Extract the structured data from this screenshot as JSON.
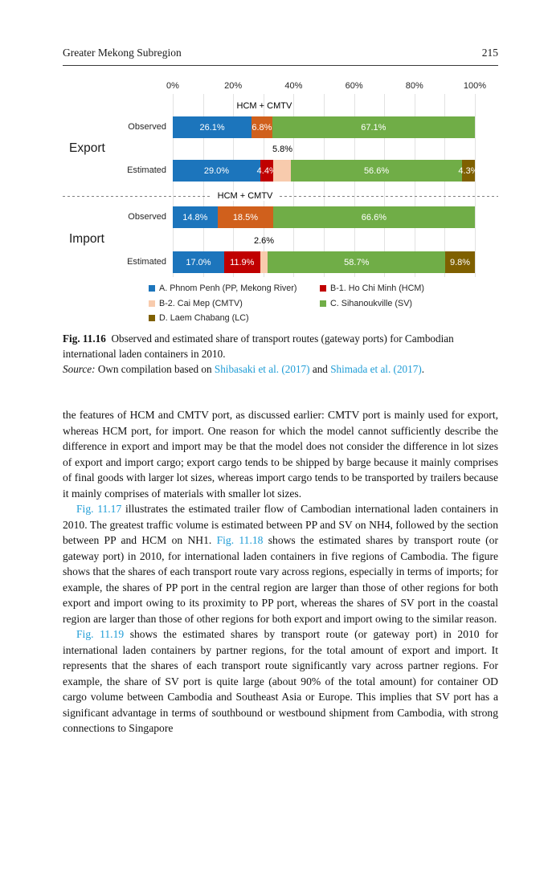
{
  "theme": {
    "link_color": "#1e9cd6",
    "grid_color": "#e2e2e2",
    "divider_color": "#7f7f7f"
  },
  "header": {
    "title": "Greater Mekong Subregion",
    "page_number": "215"
  },
  "chart_data": {
    "type": "bar",
    "orientation": "horizontal-stacked",
    "x_ticks": [
      "0%",
      "20%",
      "40%",
      "60%",
      "80%",
      "100%"
    ],
    "xlim": [
      0,
      100
    ],
    "grid": true,
    "ports": {
      "PP": {
        "label": "A. Phnom Penh (PP, Mekong River)",
        "color": "#1c75bc"
      },
      "HCM": {
        "label": "B-1. Ho Chi Minh (HCM)",
        "color": "#c00000"
      },
      "CMTV": {
        "label": "B-2. Cai Mep (CMTV)",
        "color": "#f8cbad"
      },
      "SV": {
        "label": "C. Sihanoukville (SV)",
        "color": "#70ad47"
      },
      "LC": {
        "label": "D. Laem Chabang (LC)",
        "color": "#7f6000"
      },
      "HCM_CMTV": {
        "label": "HCM + CMTV",
        "color": "#d0601c"
      }
    },
    "group_labels": [
      "Export",
      "Import"
    ],
    "divider_label": "HCM + CMTV",
    "rows": [
      {
        "group": "Export",
        "label": "Observed",
        "callout": {
          "text": "HCM + CMTV",
          "at": 30.3
        },
        "segments": [
          {
            "port": "PP",
            "value": 26.1,
            "text": "26.1%"
          },
          {
            "port": "HCM_CMTV",
            "value": 6.8,
            "text": "6.8%"
          },
          {
            "port": "SV",
            "value": 67.1,
            "text": "67.1%"
          }
        ]
      },
      {
        "group": "Export",
        "label": "Estimated",
        "callout": {
          "text": "5.8%",
          "at": 36.3
        },
        "segments": [
          {
            "port": "PP",
            "value": 29.0,
            "text": "29.0%"
          },
          {
            "port": "HCM",
            "value": 4.4,
            "text": "4.4%"
          },
          {
            "port": "CMTV",
            "value": 5.8,
            "text": ""
          },
          {
            "port": "SV",
            "value": 56.6,
            "text": "56.6%"
          },
          {
            "port": "LC",
            "value": 4.3,
            "text": "4.3%"
          }
        ]
      },
      {
        "group": "Import",
        "label": "Observed",
        "callout": null,
        "segments": [
          {
            "port": "PP",
            "value": 14.8,
            "text": "14.8%"
          },
          {
            "port": "HCM_CMTV",
            "value": 18.5,
            "text": "18.5%"
          },
          {
            "port": "SV",
            "value": 66.6,
            "text": "66.6%"
          }
        ]
      },
      {
        "group": "Import",
        "label": "Estimated",
        "callout": {
          "text": "2.6%",
          "at": 30.2
        },
        "segments": [
          {
            "port": "PP",
            "value": 17.0,
            "text": "17.0%"
          },
          {
            "port": "HCM",
            "value": 11.9,
            "text": "11.9%"
          },
          {
            "port": "CMTV",
            "value": 2.6,
            "text": ""
          },
          {
            "port": "SV",
            "value": 58.7,
            "text": "58.7%"
          },
          {
            "port": "LC",
            "value": 9.8,
            "text": "9.8%"
          }
        ]
      }
    ],
    "legend": {
      "order": [
        "PP",
        "HCM",
        "CMTV",
        "SV",
        "LC"
      ],
      "columns": 2,
      "position": "bottom"
    }
  },
  "figure": {
    "caption_runs": [
      {
        "t": "Fig. 11.16",
        "s": "bold"
      },
      {
        "t": "  Observed and estimated share of transport routes (gateway ports) for Cambodian international laden containers in 2010.",
        "s": "plain"
      }
    ],
    "source_runs": [
      {
        "t": "Source:",
        "s": "italic"
      },
      {
        "t": " Own compilation based on ",
        "s": "plain"
      },
      {
        "t": "Shibasaki et al. (2017)",
        "s": "link"
      },
      {
        "t": " and ",
        "s": "plain"
      },
      {
        "t": "Shimada et al. (2017)",
        "s": "link"
      },
      {
        "t": ".",
        "s": "plain"
      }
    ]
  },
  "body": {
    "paragraphs": [
      {
        "indent": false,
        "runs": [
          {
            "t": "the features of HCM and CMTV port, as discussed earlier: CMTV port is mainly used for export, whereas HCM port, for import. One reason for which the model cannot sufficiently describe the difference in export and import may be that the model does not consider the difference in lot sizes of export and import cargo; export cargo tends to be shipped by barge because it mainly comprises of final goods with larger lot sizes, whereas import cargo tends to be transported by trailers because it mainly comprises of materials with smaller lot sizes.",
            "s": "plain"
          }
        ]
      },
      {
        "indent": true,
        "runs": [
          {
            "t": "Fig. 11.17",
            "s": "link"
          },
          {
            "t": " illustrates the estimated trailer flow of Cambodian international laden containers in 2010. The greatest traffic volume is estimated between PP and SV on NH4, followed by the section between PP and HCM on NH1. ",
            "s": "plain"
          },
          {
            "t": "Fig. 11.18",
            "s": "link"
          },
          {
            "t": " shows the estimated shares by transport route (or gateway port) in 2010, for international laden containers in five regions of Cambodia. The figure shows that the shares of each transport route vary across regions, especially in terms of imports; for example, the shares of PP port in the central region are larger than those of other regions for both export and import owing to its proximity to PP port, whereas the shares of SV port in the coastal region are larger than those of other regions for both export and import owing to the similar reason.",
            "s": "plain"
          }
        ]
      },
      {
        "indent": true,
        "runs": [
          {
            "t": "Fig. 11.19",
            "s": "link"
          },
          {
            "t": " shows the estimated shares by transport route (or gateway port) in 2010 for international laden containers by partner regions, for the total amount of export and import. It represents that the shares of each transport route significantly vary across partner regions. For example, the share of SV port is quite large (about 90% of the total amount) for container OD cargo volume between Cambodia and Southeast Asia or Europe. This implies that SV port has a significant advantage in terms of southbound or westbound shipment from Cambodia, with strong connections to Singapore",
            "s": "plain"
          }
        ]
      }
    ]
  }
}
